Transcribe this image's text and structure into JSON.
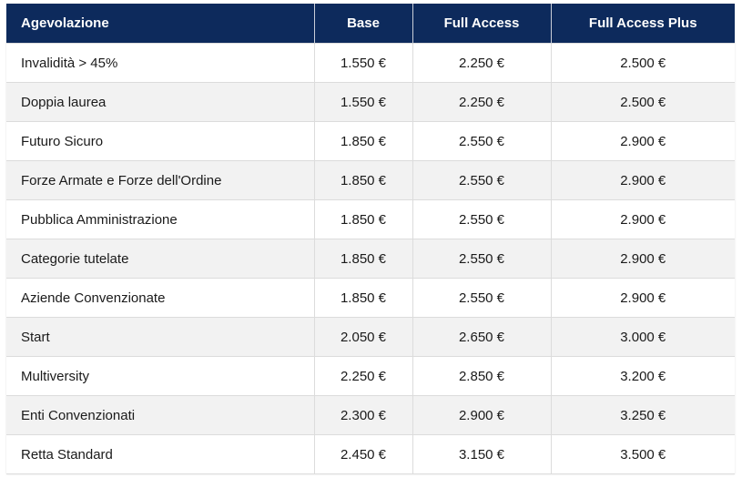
{
  "table": {
    "headers": [
      "Agevolazione",
      "Base",
      "Full Access",
      "Full Access Plus"
    ],
    "rows": [
      [
        "Invalidità > 45%",
        "1.550 €",
        "2.250 €",
        "2.500 €"
      ],
      [
        "Doppia laurea",
        "1.550 €",
        "2.250 €",
        "2.500 €"
      ],
      [
        "Futuro Sicuro",
        "1.850 €",
        "2.550 €",
        "2.900 €"
      ],
      [
        "Forze Armate e Forze dell'Ordine",
        "1.850 €",
        "2.550 €",
        "2.900 €"
      ],
      [
        "Pubblica Amministrazione",
        "1.850 €",
        "2.550 €",
        "2.900 €"
      ],
      [
        "Categorie tutelate",
        "1.850 €",
        "2.550 €",
        "2.900 €"
      ],
      [
        "Aziende Convenzionate",
        "1.850 €",
        "2.550 €",
        "2.900 €"
      ],
      [
        "Start",
        "2.050 €",
        "2.650 €",
        "3.000 €"
      ],
      [
        "Multiversity",
        "2.250 €",
        "2.850 €",
        "3.200 €"
      ],
      [
        "Enti Convenzionati",
        "2.300 €",
        "2.900 €",
        "3.250 €"
      ],
      [
        "Retta Standard",
        "2.450 €",
        "3.150 €",
        "3.500 €"
      ]
    ]
  },
  "colors": {
    "header_bg": "#0d2a5c",
    "header_text": "#ffffff",
    "row_alt_bg": "#f2f2f2",
    "border": "#dcdcdc"
  }
}
